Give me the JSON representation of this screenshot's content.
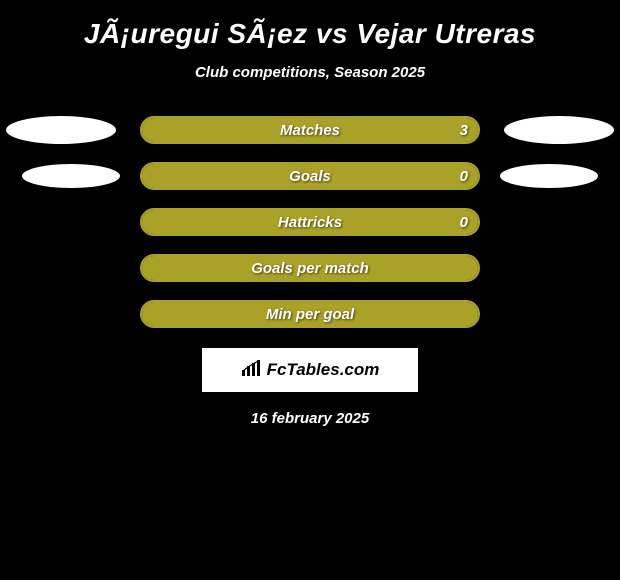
{
  "title": "JÃ¡uregui SÃ¡ez vs Vejar Utreras",
  "subtitle": "Club competitions, Season 2025",
  "colors": {
    "background": "#000000",
    "text": "#ffffff",
    "bar_border": "#a9a128",
    "bar_fill": "#a9a128",
    "ellipse": "#ffffff",
    "logo_bg": "#ffffff",
    "logo_text": "#000000"
  },
  "rows": [
    {
      "label": "Matches",
      "value": "3",
      "fill_pct": 100,
      "show_value": true,
      "show_left_ellipse": true,
      "show_right_ellipse": true,
      "ellipse_class": "r1"
    },
    {
      "label": "Goals",
      "value": "0",
      "fill_pct": 100,
      "show_value": true,
      "show_left_ellipse": true,
      "show_right_ellipse": true,
      "ellipse_class": "r2"
    },
    {
      "label": "Hattricks",
      "value": "0",
      "fill_pct": 100,
      "show_value": true,
      "show_left_ellipse": false,
      "show_right_ellipse": false,
      "ellipse_class": ""
    },
    {
      "label": "Goals per match",
      "value": "",
      "fill_pct": 100,
      "show_value": false,
      "show_left_ellipse": false,
      "show_right_ellipse": false,
      "ellipse_class": ""
    },
    {
      "label": "Min per goal",
      "value": "",
      "fill_pct": 100,
      "show_value": false,
      "show_left_ellipse": false,
      "show_right_ellipse": false,
      "ellipse_class": ""
    }
  ],
  "logo": {
    "text": "FcTables.com"
  },
  "date": "16 february 2025"
}
